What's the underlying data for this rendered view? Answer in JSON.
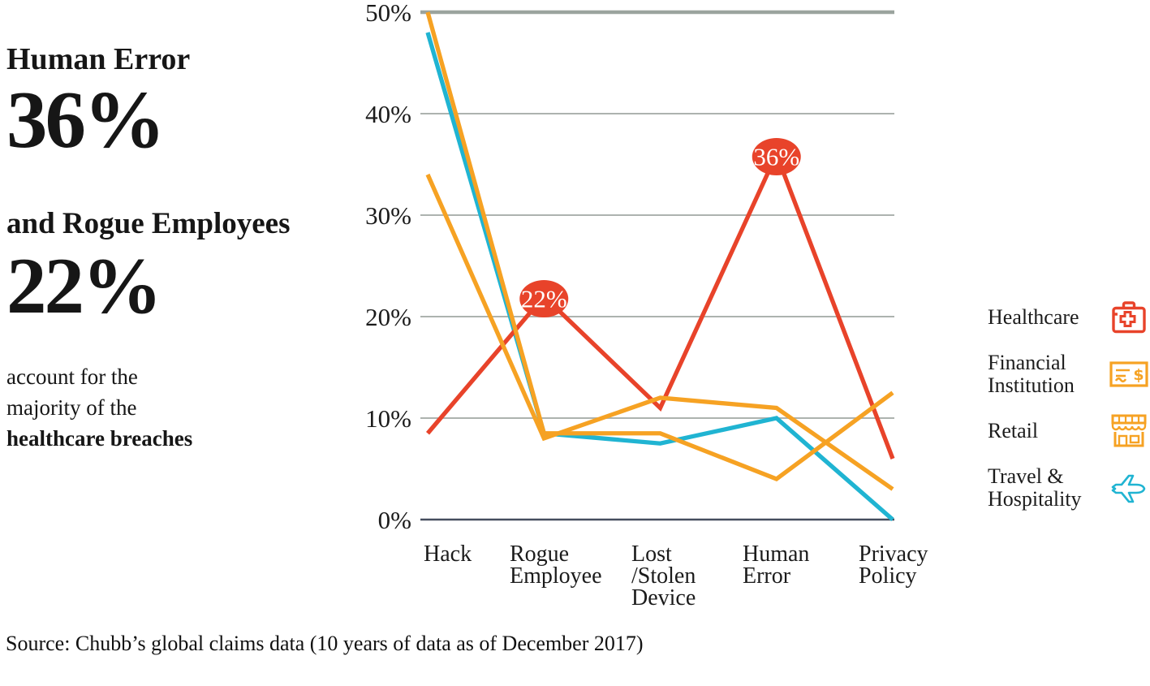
{
  "headline": {
    "line1": "Human Error",
    "stat1": "36%",
    "line2": "and Rogue Employees",
    "stat2": "22%",
    "caption_lines": [
      "account for the",
      "majority of the",
      "healthcare breaches"
    ]
  },
  "legend": {
    "items": [
      {
        "label": "Healthcare",
        "icon": "first-aid-kit-icon",
        "color": "#e8432a"
      },
      {
        "label": "Financial Institution",
        "icon": "check-dollar-icon",
        "color": "#f6a223"
      },
      {
        "label": "Retail",
        "icon": "storefront-icon",
        "color": "#f6a223"
      },
      {
        "label": "Travel & Hospitality",
        "icon": "airplane-icon",
        "color": "#20b4d2"
      }
    ]
  },
  "source": "Source: Chubb’s global claims data (10 years of data as of December 2017)",
  "chart_data": {
    "type": "line",
    "categories": [
      "Hack",
      "Rogue\nEmployee",
      "Lost\n/Stolen\nDevice",
      "Human\nError",
      "Privacy\nPolicy"
    ],
    "ylim": [
      0,
      50
    ],
    "yticks": [
      0,
      10,
      20,
      30,
      40,
      50
    ],
    "ytick_labels": [
      "0%",
      "10%",
      "20%",
      "30%",
      "40%",
      "50%"
    ],
    "grid": true,
    "legend_position": "right",
    "series": [
      {
        "name": "Travel & Hospitality",
        "color": "#20b4d2",
        "values": [
          48,
          8.5,
          7.5,
          10,
          0
        ]
      },
      {
        "name": "Healthcare",
        "color": "#e8432a",
        "values": [
          8.5,
          22,
          11,
          36,
          6
        ]
      },
      {
        "name": "Retail",
        "color": "#f6a223",
        "values": [
          34,
          8,
          12,
          11,
          3
        ]
      },
      {
        "name": "Financial Institution",
        "color": "#f6a223",
        "values": [
          50,
          8.5,
          8.5,
          4,
          12.5
        ]
      }
    ],
    "annotations": [
      {
        "series": "Healthcare",
        "label": "22%",
        "category": "Rogue Employee",
        "category_index": 1,
        "value": 22
      },
      {
        "series": "Healthcare",
        "label": "36%",
        "category": "Human Error",
        "category_index": 3,
        "value": 36
      }
    ],
    "axis_colors": {
      "grid_color": "#adb3af",
      "top_grid_color": "#9ba49e",
      "zero_line_color": "#454e5e",
      "tick_text_color": "#1b1b1b"
    }
  }
}
